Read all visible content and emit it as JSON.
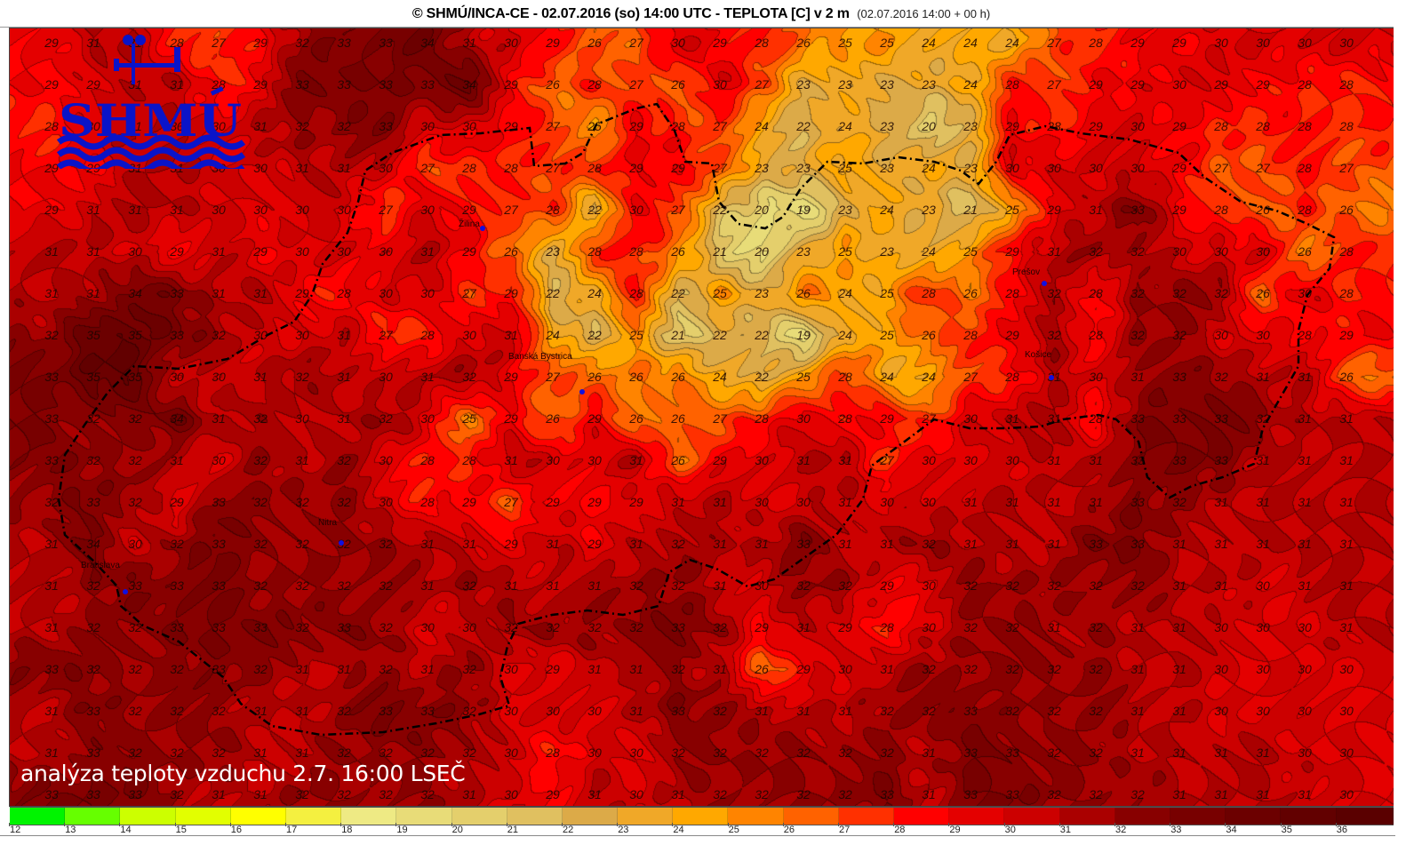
{
  "header": {
    "title": "© SHMÚ/INCA-CE - 02.07.2016 (so) 14:00 UTC - TEPLOTA [C] v 2 m",
    "subtitle": "(02.07.2016 14:00 + 00 h)"
  },
  "logo": {
    "text": "SHMÚ",
    "color": "#0a14c8"
  },
  "caption": "analýza teploty vzduchu 2.7. 16:00 LSEČ",
  "cities": [
    {
      "name": "Žilina"
    },
    {
      "name": "Prešov"
    },
    {
      "name": "Košice"
    },
    {
      "name": "Banská Bystrica"
    },
    {
      "name": "Nitra"
    },
    {
      "name": "Bratislava"
    }
  ],
  "temperature_grid": [
    [
      "29",
      "31",
      "31",
      "28",
      "27",
      "29",
      "32",
      "33",
      "33",
      "34",
      "31",
      "30",
      "29",
      "26",
      "27",
      "30",
      "29",
      "28",
      "26",
      "25",
      "25",
      "24",
      "24",
      "24",
      "27",
      "28",
      "29",
      "29",
      "30",
      "30",
      "30",
      "30"
    ],
    [
      "29",
      "29",
      "31",
      "31",
      "28",
      "29",
      "33",
      "33",
      "33",
      "33",
      "34",
      "29",
      "26",
      "28",
      "27",
      "26",
      "30",
      "27",
      "23",
      "23",
      "23",
      "23",
      "24",
      "28",
      "27",
      "29",
      "29",
      "30",
      "29",
      "29",
      "28",
      "28"
    ],
    [
      "28",
      "30",
      "31",
      "30",
      "30",
      "31",
      "32",
      "32",
      "33",
      "30",
      "30",
      "29",
      "27",
      "25",
      "29",
      "28",
      "27",
      "24",
      "22",
      "24",
      "23",
      "20",
      "23",
      "29",
      "28",
      "29",
      "30",
      "29",
      "28",
      "28",
      "28",
      "28"
    ],
    [
      "29",
      "29",
      "31",
      "31",
      "30",
      "30",
      "31",
      "31",
      "30",
      "27",
      "28",
      "28",
      "27",
      "28",
      "29",
      "29",
      "27",
      "23",
      "23",
      "25",
      "23",
      "24",
      "23",
      "30",
      "30",
      "30",
      "30",
      "29",
      "27",
      "27",
      "28",
      "27"
    ],
    [
      "29",
      "31",
      "31",
      "31",
      "30",
      "30",
      "30",
      "30",
      "27",
      "30",
      "29",
      "27",
      "28",
      "22",
      "30",
      "27",
      "22",
      "20",
      "19",
      "23",
      "24",
      "23",
      "21",
      "25",
      "29",
      "31",
      "33",
      "29",
      "28",
      "26",
      "28",
      "26"
    ],
    [
      "31",
      "31",
      "30",
      "29",
      "31",
      "29",
      "30",
      "30",
      "30",
      "31",
      "29",
      "26",
      "23",
      "28",
      "28",
      "26",
      "21",
      "20",
      "23",
      "25",
      "23",
      "24",
      "25",
      "29",
      "31",
      "32",
      "32",
      "30",
      "30",
      "30",
      "26",
      "28"
    ],
    [
      "31",
      "31",
      "34",
      "33",
      "31",
      "31",
      "29",
      "28",
      "30",
      "30",
      "27",
      "29",
      "22",
      "24",
      "28",
      "22",
      "25",
      "23",
      "26",
      "24",
      "25",
      "28",
      "26",
      "28",
      "32",
      "28",
      "32",
      "32",
      "32",
      "26",
      "30",
      "28"
    ],
    [
      "32",
      "35",
      "35",
      "33",
      "32",
      "30",
      "30",
      "31",
      "27",
      "28",
      "30",
      "31",
      "24",
      "22",
      "25",
      "21",
      "22",
      "22",
      "19",
      "24",
      "25",
      "26",
      "28",
      "29",
      "32",
      "28",
      "32",
      "32",
      "30",
      "30",
      "28",
      "29"
    ],
    [
      "33",
      "35",
      "35",
      "30",
      "30",
      "31",
      "32",
      "31",
      "30",
      "31",
      "32",
      "29",
      "27",
      "26",
      "26",
      "26",
      "24",
      "22",
      "25",
      "28",
      "24",
      "24",
      "27",
      "28",
      "31",
      "30",
      "31",
      "33",
      "32",
      "31",
      "31",
      "26"
    ],
    [
      "33",
      "32",
      "32",
      "34",
      "31",
      "32",
      "30",
      "31",
      "32",
      "30",
      "25",
      "29",
      "26",
      "29",
      "26",
      "26",
      "27",
      "28",
      "30",
      "28",
      "29",
      "27",
      "30",
      "31",
      "31",
      "28",
      "33",
      "33",
      "33",
      "32",
      "31",
      "31"
    ],
    [
      "33",
      "32",
      "32",
      "31",
      "30",
      "32",
      "31",
      "32",
      "30",
      "28",
      "28",
      "31",
      "30",
      "30",
      "31",
      "26",
      "29",
      "30",
      "31",
      "31",
      "27",
      "30",
      "30",
      "30",
      "31",
      "31",
      "33",
      "33",
      "33",
      "31",
      "31",
      "31"
    ],
    [
      "32",
      "33",
      "32",
      "29",
      "33",
      "32",
      "32",
      "32",
      "30",
      "28",
      "29",
      "27",
      "29",
      "29",
      "29",
      "31",
      "31",
      "30",
      "30",
      "31",
      "30",
      "30",
      "31",
      "31",
      "31",
      "31",
      "33",
      "32",
      "31",
      "31",
      "31",
      "31"
    ],
    [
      "31",
      "34",
      "30",
      "32",
      "33",
      "32",
      "32",
      "32",
      "32",
      "31",
      "31",
      "29",
      "31",
      "29",
      "31",
      "32",
      "31",
      "31",
      "33",
      "31",
      "31",
      "32",
      "31",
      "31",
      "31",
      "33",
      "33",
      "31",
      "31",
      "31",
      "31",
      "31"
    ],
    [
      "31",
      "32",
      "33",
      "33",
      "33",
      "32",
      "32",
      "32",
      "32",
      "31",
      "32",
      "31",
      "31",
      "31",
      "32",
      "32",
      "31",
      "30",
      "32",
      "32",
      "29",
      "30",
      "32",
      "32",
      "32",
      "32",
      "32",
      "31",
      "31",
      "30",
      "31",
      "31"
    ],
    [
      "31",
      "32",
      "32",
      "33",
      "33",
      "33",
      "32",
      "33",
      "32",
      "30",
      "30",
      "32",
      "32",
      "32",
      "32",
      "33",
      "32",
      "29",
      "31",
      "29",
      "28",
      "30",
      "32",
      "32",
      "31",
      "32",
      "31",
      "31",
      "30",
      "30",
      "30",
      "31"
    ],
    [
      "33",
      "32",
      "32",
      "32",
      "33",
      "32",
      "31",
      "31",
      "32",
      "31",
      "32",
      "30",
      "29",
      "31",
      "31",
      "32",
      "31",
      "26",
      "29",
      "30",
      "31",
      "32",
      "32",
      "32",
      "32",
      "32",
      "31",
      "31",
      "30",
      "30",
      "30",
      "30"
    ],
    [
      "31",
      "33",
      "32",
      "32",
      "32",
      "31",
      "31",
      "32",
      "33",
      "33",
      "32",
      "30",
      "30",
      "30",
      "31",
      "33",
      "32",
      "31",
      "31",
      "31",
      "32",
      "32",
      "33",
      "32",
      "32",
      "32",
      "31",
      "31",
      "30",
      "30",
      "30",
      "30"
    ],
    [
      "31",
      "33",
      "32",
      "32",
      "32",
      "31",
      "31",
      "32",
      "32",
      "32",
      "32",
      "30",
      "28",
      "30",
      "30",
      "32",
      "32",
      "32",
      "32",
      "32",
      "32",
      "31",
      "33",
      "33",
      "32",
      "32",
      "31",
      "31",
      "31",
      "31",
      "30",
      "30"
    ],
    [
      "33",
      "33",
      "33",
      "32",
      "31",
      "31",
      "32",
      "32",
      "32",
      "32",
      "31",
      "30",
      "29",
      "31",
      "30",
      "31",
      "32",
      "32",
      "32",
      "32",
      "33",
      "31",
      "33",
      "33",
      "32",
      "32",
      "32",
      "31",
      "31",
      "31",
      "31",
      "30"
    ]
  ],
  "legend": {
    "unit": "C",
    "ticks": [
      "12",
      "13",
      "14",
      "15",
      "16",
      "17",
      "18",
      "19",
      "20",
      "21",
      "22",
      "23",
      "24",
      "25",
      "26",
      "27",
      "28",
      "29",
      "30",
      "31",
      "32",
      "33",
      "34",
      "35",
      "36"
    ],
    "colors": [
      "#00f400",
      "#66ff00",
      "#ccff00",
      "#e2ff00",
      "#ffff00",
      "#f4f040",
      "#eeea84",
      "#e8dc78",
      "#e4cf6c",
      "#e0c060",
      "#dcaa48",
      "#f0a828",
      "#ffa800",
      "#ff8400",
      "#ff6200",
      "#ff3000",
      "#ff0000",
      "#e40000",
      "#cc0000",
      "#aa0000",
      "#880000",
      "#780000",
      "#6c0000",
      "#620000",
      "#5a0000"
    ]
  },
  "border_color": "#000000"
}
